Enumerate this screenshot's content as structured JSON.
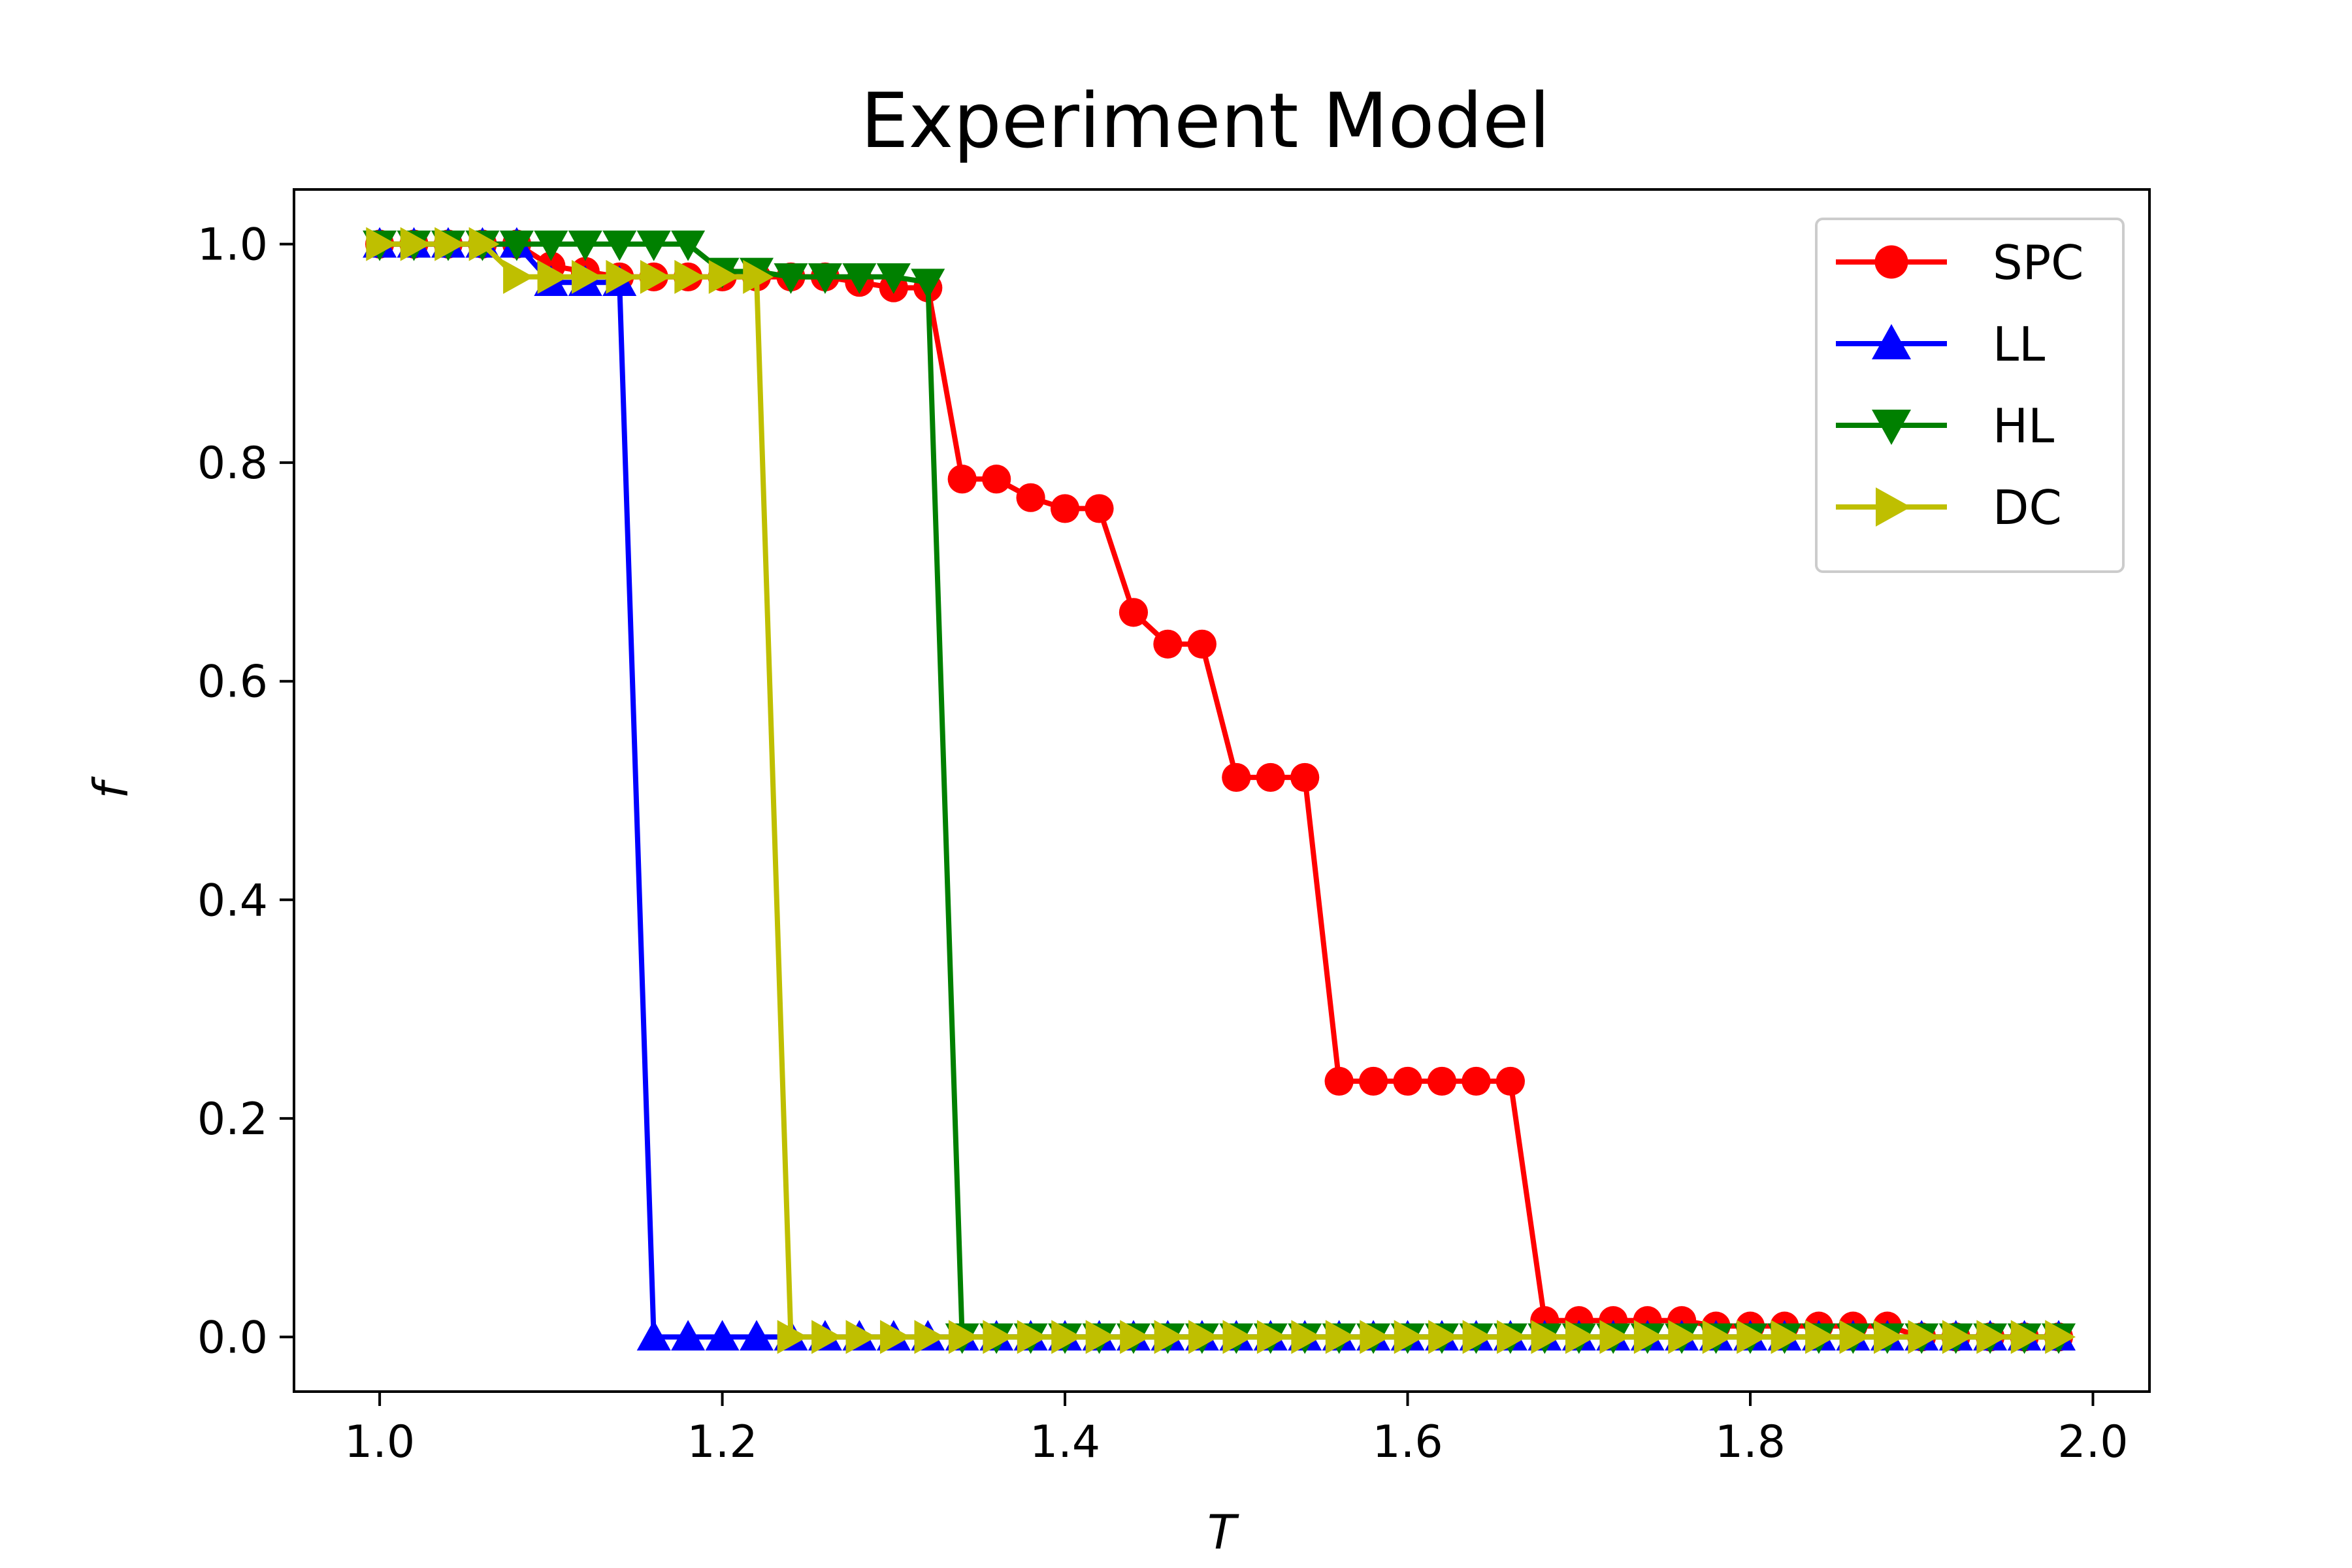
{
  "chart_data": {
    "type": "line",
    "title": "Experiment Model",
    "xlabel": "T",
    "ylabel": "f",
    "xlim": [
      0.95,
      2.033
    ],
    "ylim": [
      -0.05,
      1.05
    ],
    "xticks": [
      1.0,
      1.2,
      1.4,
      1.6,
      1.8,
      2.0
    ],
    "xtick_labels": [
      "1.0",
      "1.2",
      "1.4",
      "1.6",
      "1.8",
      "2.0"
    ],
    "yticks": [
      0.0,
      0.2,
      0.4,
      0.6,
      0.8,
      1.0
    ],
    "ytick_labels": [
      "0.0",
      "0.2",
      "0.4",
      "0.6",
      "0.8",
      "1.0"
    ],
    "grid": false,
    "legend_position": "top-right",
    "x": [
      1.0,
      1.02,
      1.04,
      1.06,
      1.08,
      1.1,
      1.12,
      1.14,
      1.16,
      1.18,
      1.2,
      1.22,
      1.24,
      1.26,
      1.28,
      1.3,
      1.32,
      1.34,
      1.36,
      1.38,
      1.4,
      1.42,
      1.44,
      1.46,
      1.48,
      1.5,
      1.52,
      1.54,
      1.56,
      1.58,
      1.6,
      1.62,
      1.64,
      1.66,
      1.68,
      1.7,
      1.72,
      1.74,
      1.76,
      1.78,
      1.8,
      1.82,
      1.84,
      1.86,
      1.88,
      1.9,
      1.92,
      1.94,
      1.96,
      1.98
    ],
    "series": [
      {
        "name": "SPC",
        "color": "#ff0000",
        "marker": "circle",
        "values": [
          1.0,
          1.0,
          1.0,
          1.0,
          1.0,
          0.98,
          0.975,
          0.97,
          0.97,
          0.97,
          0.97,
          0.97,
          0.97,
          0.97,
          0.965,
          0.96,
          0.96,
          0.785,
          0.785,
          0.768,
          0.758,
          0.758,
          0.663,
          0.634,
          0.634,
          0.512,
          0.512,
          0.512,
          0.234,
          0.234,
          0.234,
          0.234,
          0.234,
          0.234,
          0.015,
          0.015,
          0.015,
          0.015,
          0.015,
          0.01,
          0.01,
          0.01,
          0.01,
          0.01,
          0.01,
          0.0,
          0.0,
          0.0,
          0.0,
          0.0
        ]
      },
      {
        "name": "LL",
        "color": "#0000ff",
        "marker": "triangle-up",
        "values": [
          1.0,
          1.0,
          1.0,
          1.0,
          1.0,
          0.965,
          0.965,
          0.965,
          0.0,
          0.0,
          0.0,
          0.0,
          0.0,
          0.0,
          0.0,
          0.0,
          0.0,
          0.0,
          0.0,
          0.0,
          0.0,
          0.0,
          0.0,
          0.0,
          0.0,
          0.0,
          0.0,
          0.0,
          0.0,
          0.0,
          0.0,
          0.0,
          0.0,
          0.0,
          0.0,
          0.0,
          0.0,
          0.0,
          0.0,
          0.0,
          0.0,
          0.0,
          0.0,
          0.0,
          0.0,
          0.0,
          0.0,
          0.0,
          0.0,
          0.0
        ]
      },
      {
        "name": "HL",
        "color": "#008000",
        "marker": "triangle-down",
        "values": [
          1.0,
          1.0,
          1.0,
          1.0,
          1.0,
          1.0,
          1.0,
          1.0,
          1.0,
          1.0,
          0.975,
          0.975,
          0.97,
          0.97,
          0.97,
          0.97,
          0.965,
          0.0,
          0.0,
          0.0,
          0.0,
          0.0,
          0.0,
          0.0,
          0.0,
          0.0,
          0.0,
          0.0,
          0.0,
          0.0,
          0.0,
          0.0,
          0.0,
          0.0,
          0.0,
          0.0,
          0.0,
          0.0,
          0.0,
          0.0,
          0.0,
          0.0,
          0.0,
          0.0,
          0.0,
          0.0,
          0.0,
          0.0,
          0.0,
          0.0
        ]
      },
      {
        "name": "DC",
        "color": "#bfbf00",
        "marker": "triangle-right",
        "values": [
          1.0,
          1.0,
          1.0,
          1.0,
          0.97,
          0.97,
          0.97,
          0.97,
          0.97,
          0.97,
          0.97,
          0.97,
          0.0,
          0.0,
          0.0,
          0.0,
          0.0,
          0.0,
          0.0,
          0.0,
          0.0,
          0.0,
          0.0,
          0.0,
          0.0,
          0.0,
          0.0,
          0.0,
          0.0,
          0.0,
          0.0,
          0.0,
          0.0,
          0.0,
          0.0,
          0.0,
          0.0,
          0.0,
          0.0,
          0.0,
          0.0,
          0.0,
          0.0,
          0.0,
          0.0,
          0.0,
          0.0,
          0.0,
          0.0,
          0.0
        ]
      }
    ]
  }
}
